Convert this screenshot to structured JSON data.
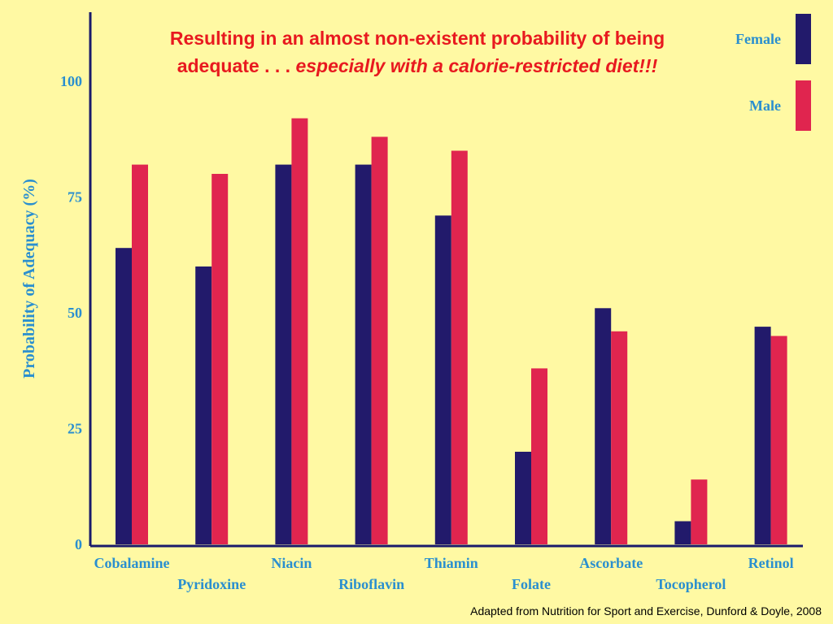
{
  "slide": {
    "background_color": "#fff9a3",
    "title_part1": "Resulting in an almost non-existent probability of being adequate . . . ",
    "title_part2": "especially with a calorie-restricted diet!!!",
    "title_color": "#e8191f",
    "source": "Adapted from Nutrition for Sport and Exercise, Dunford & Doyle, 2008"
  },
  "chart_data": {
    "type": "bar",
    "title": "",
    "xlabel": "",
    "ylabel": "Probability of Adequacy (%)",
    "ylim": [
      0,
      110
    ],
    "yticks": [
      0,
      25,
      50,
      75,
      100
    ],
    "grid": false,
    "legend_position": "top-right",
    "categories": [
      "Cobalamine",
      "Pyridoxine",
      "Niacin",
      "Riboflavin",
      "Thiamin",
      "Folate",
      "Ascorbate",
      "Tocopherol",
      "Retinol"
    ],
    "series": [
      {
        "name": "Female",
        "color": "#221a6b",
        "values": [
          64,
          60,
          82,
          82,
          71,
          20,
          51,
          5,
          47
        ]
      },
      {
        "name": "Male",
        "color": "#e0254f",
        "values": [
          82,
          80,
          92,
          88,
          85,
          38,
          46,
          14,
          45
        ]
      }
    ],
    "axis_color": "#1a1a6b",
    "label_color": "#2a8fcf"
  }
}
